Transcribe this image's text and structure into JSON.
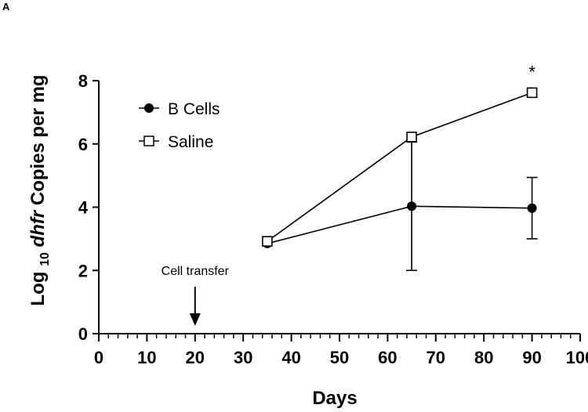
{
  "panel_label": "A",
  "chart_data": {
    "type": "line",
    "xlabel": "Days",
    "ylabel": {
      "prefix": "Log",
      "subscript": "10",
      "italic": "dhfr",
      "suffix": "Copies per mg"
    },
    "xlim": [
      0,
      100
    ],
    "ylim": [
      0,
      8
    ],
    "x_ticks": [
      0,
      10,
      20,
      30,
      40,
      50,
      60,
      70,
      80,
      90,
      100
    ],
    "x_tick_labels": [
      "0",
      "10",
      "20",
      "30",
      "40",
      "50",
      "60",
      "70",
      "80",
      "90",
      "100"
    ],
    "x_minor_step": 2,
    "y_ticks": [
      0,
      2,
      4,
      6,
      8
    ],
    "y_tick_labels": [
      "0",
      "2",
      "4",
      "6",
      "8"
    ],
    "grid": false,
    "legend_position": "top-left",
    "series": [
      {
        "name": "B Cells",
        "marker": "filled-circle",
        "color": "#000000",
        "x": [
          35,
          65,
          90
        ],
        "y": [
          2.85,
          4.03,
          3.97
        ],
        "error": [
          0.05,
          2.03,
          0.97
        ]
      },
      {
        "name": "Saline",
        "marker": "open-square",
        "color": "#000000",
        "x": [
          35,
          65,
          90
        ],
        "y": [
          2.92,
          6.22,
          7.62
        ],
        "error": [
          0.05,
          0.0,
          0.12
        ]
      }
    ],
    "annotations": [
      {
        "text": "Cell transfer",
        "x": 20,
        "kind": "arrow"
      },
      {
        "text": "*",
        "x": 90,
        "kind": "significance"
      }
    ]
  }
}
